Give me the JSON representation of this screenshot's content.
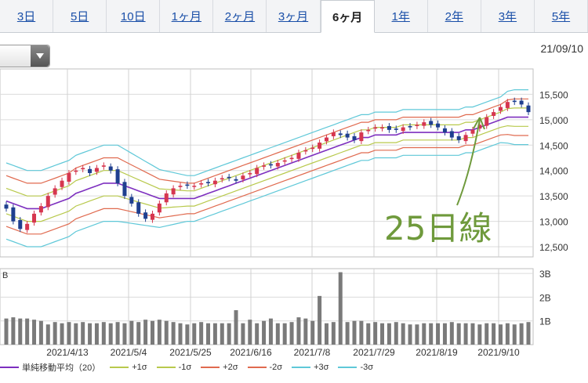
{
  "tabs": [
    {
      "label": "3日",
      "active": false
    },
    {
      "label": "5日",
      "active": false
    },
    {
      "label": "10日",
      "active": false
    },
    {
      "label": "1ヶ月",
      "active": false
    },
    {
      "label": "2ヶ月",
      "active": false
    },
    {
      "label": "3ヶ月",
      "active": false
    },
    {
      "label": "6ヶ月",
      "active": true
    },
    {
      "label": "1年",
      "active": false
    },
    {
      "label": "2年",
      "active": false
    },
    {
      "label": "3年",
      "active": false
    },
    {
      "label": "5年",
      "active": false
    }
  ],
  "date_label": "21/09/10",
  "annotation": {
    "text": "25日線",
    "color": "#6f9a3c"
  },
  "legend": [
    {
      "label": "単純移動平均（20）",
      "color": "#7d2fbf"
    },
    {
      "label": "+1σ",
      "color": "#b8c94c"
    },
    {
      "label": "-1σ",
      "color": "#b8c94c"
    },
    {
      "label": "+2σ",
      "color": "#e06a4f"
    },
    {
      "label": "-2σ",
      "color": "#e06a4f"
    },
    {
      "label": "+3σ",
      "color": "#5fc8d8"
    },
    {
      "label": "-3σ",
      "color": "#5fc8d8"
    }
  ],
  "chart_data": {
    "type": "candlestick",
    "x_ticks": [
      "2021/4/13",
      "2021/5/4",
      "2021/5/25",
      "2021/6/16",
      "2021/7/8",
      "2021/7/29",
      "2021/8/19",
      "2021/9/10"
    ],
    "price": {
      "ylim": [
        12300,
        16000
      ],
      "ticks": [
        12500,
        13000,
        13500,
        14000,
        14500,
        15000,
        15500
      ],
      "tick_labels": [
        "12,500",
        "13,000",
        "13,500",
        "14,000",
        "14,500",
        "15,000",
        "15,500"
      ],
      "close": [
        13250,
        13000,
        12850,
        12950,
        13150,
        13300,
        13500,
        13650,
        13800,
        13950,
        14000,
        14050,
        13950,
        14050,
        14100,
        14000,
        13750,
        13500,
        13350,
        13150,
        13050,
        13150,
        13350,
        13550,
        13650,
        13700,
        13700,
        13700,
        13750,
        13750,
        13800,
        13850,
        13850,
        13800,
        13900,
        13950,
        14050,
        14100,
        14100,
        14150,
        14200,
        14250,
        14350,
        14400,
        14450,
        14550,
        14650,
        14750,
        14700,
        14650,
        14600,
        14750,
        14800,
        14850,
        14850,
        14800,
        14800,
        14850,
        14850,
        14900,
        14950,
        14900,
        14850,
        14750,
        14650,
        14600,
        14700,
        14800,
        14900,
        15050,
        15150,
        15250,
        15350,
        15350,
        15300,
        15150
      ],
      "sma20": [
        13400,
        13350,
        13300,
        13250,
        13250,
        13250,
        13300,
        13350,
        13400,
        13450,
        13550,
        13600,
        13650,
        13700,
        13750,
        13750,
        13750,
        13700,
        13650,
        13600,
        13550,
        13500,
        13450,
        13450,
        13450,
        13450,
        13450,
        13450,
        13500,
        13550,
        13600,
        13650,
        13700,
        13750,
        13800,
        13850,
        13900,
        13950,
        14000,
        14050,
        14100,
        14150,
        14200,
        14250,
        14300,
        14350,
        14400,
        14450,
        14500,
        14550,
        14600,
        14650,
        14650,
        14700,
        14700,
        14700,
        14700,
        14750,
        14750,
        14750,
        14750,
        14750,
        14750,
        14750,
        14750,
        14750,
        14800,
        14800,
        14850,
        14900,
        14950,
        15000,
        15050,
        15050,
        15050,
        15050
      ],
      "sigma": [
        250,
        250,
        250,
        250,
        250,
        250,
        250,
        250,
        250,
        250,
        250,
        250,
        250,
        250,
        250,
        250,
        250,
        240,
        230,
        220,
        210,
        200,
        190,
        180,
        170,
        160,
        150,
        150,
        150,
        150,
        150,
        150,
        150,
        150,
        150,
        150,
        150,
        150,
        150,
        150,
        150,
        150,
        150,
        150,
        150,
        150,
        150,
        150,
        150,
        150,
        150,
        150,
        150,
        150,
        150,
        150,
        150,
        150,
        150,
        150,
        150,
        150,
        150,
        150,
        150,
        150,
        150,
        150,
        150,
        150,
        150,
        150,
        170,
        180,
        180,
        180
      ],
      "up_color": "#d6364f",
      "down_color": "#1f3f8f"
    },
    "volume": {
      "ylim": [
        0,
        3.2
      ],
      "ticks": [
        1,
        2,
        3
      ],
      "tick_labels": [
        "1B",
        "2B",
        "3B"
      ],
      "unit": "B",
      "values": [
        1.1,
        1.15,
        1.1,
        1.1,
        1.05,
        1.0,
        0.85,
        0.95,
        0.9,
        0.95,
        0.9,
        0.95,
        0.9,
        0.9,
        0.95,
        0.9,
        0.95,
        0.9,
        1.0,
        0.95,
        1.05,
        1.0,
        1.05,
        1.0,
        0.95,
        0.9,
        0.85,
        0.9,
        0.95,
        0.9,
        0.9,
        0.9,
        0.9,
        1.45,
        0.9,
        1.05,
        0.9,
        1.0,
        1.1,
        0.9,
        0.9,
        0.95,
        1.15,
        1.1,
        1.0,
        2.05,
        0.9,
        0.95,
        3.05,
        0.95,
        1.0,
        1.0,
        0.9,
        0.95,
        0.9,
        0.9,
        0.95,
        0.9,
        0.85,
        0.85,
        0.9,
        0.9,
        0.9,
        0.9,
        0.95,
        0.9,
        0.9,
        0.9,
        0.85,
        0.9,
        0.9,
        0.85,
        0.9,
        0.85,
        0.9,
        0.95
      ],
      "color": "#7a7a7a"
    },
    "grid": true
  }
}
